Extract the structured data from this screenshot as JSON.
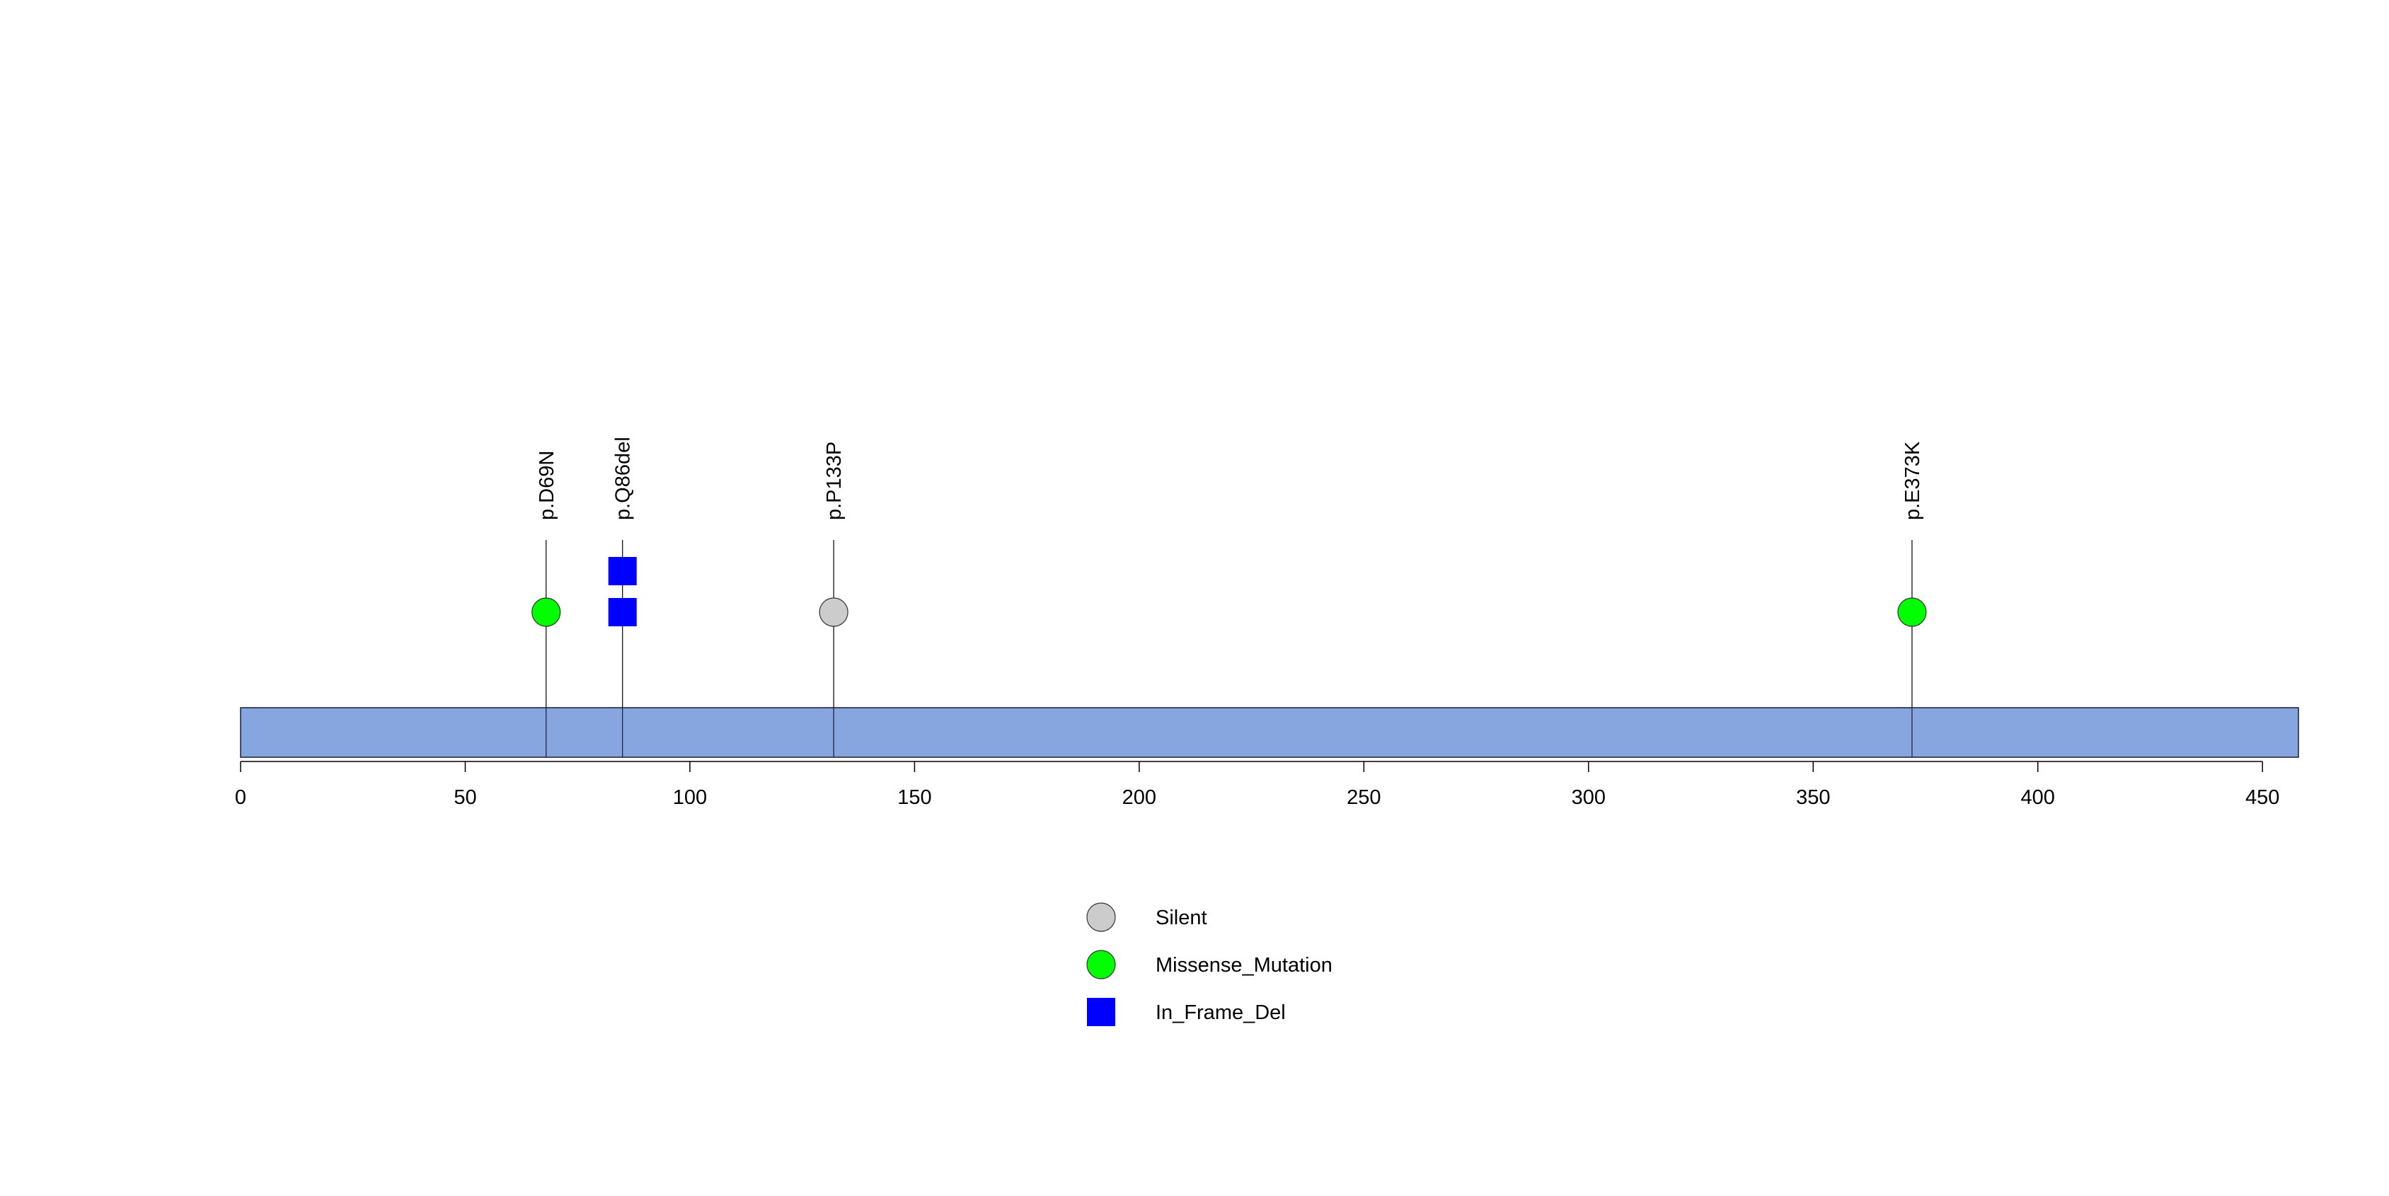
{
  "chart_data": {
    "type": "lollipop",
    "title": "",
    "xlabel": "",
    "ylabel": "",
    "xlim": [
      0,
      458
    ],
    "x_ticks": [
      0,
      50,
      100,
      150,
      200,
      250,
      300,
      350,
      400,
      450
    ],
    "x_tick_labels": [
      "0",
      "50",
      "100",
      "150",
      "200",
      "250",
      "300",
      "350",
      "400",
      "450"
    ],
    "protein_length": 458,
    "colors": {
      "protein_bar": "#87a5de",
      "Silent": "#cccccc",
      "Missense_Mutation": "#00ff00",
      "In_Frame_Del": "#0000ff"
    },
    "mutations": [
      {
        "label": "p.D69N",
        "position": 68,
        "type": "Missense_Mutation",
        "shape": "circle",
        "count": 1
      },
      {
        "label": "p.Q86del",
        "position": 85,
        "type": "In_Frame_Del",
        "shape": "square",
        "count": 2
      },
      {
        "label": "p.P133P",
        "position": 132,
        "type": "Silent",
        "shape": "circle",
        "count": 1
      },
      {
        "label": "p.E373K",
        "position": 372,
        "type": "Missense_Mutation",
        "shape": "circle",
        "count": 1
      }
    ],
    "legend": [
      {
        "label": "Silent",
        "shape": "circle",
        "type": "Silent"
      },
      {
        "label": "Missense_Mutation",
        "shape": "circle",
        "type": "Missense_Mutation"
      },
      {
        "label": "In_Frame_Del",
        "shape": "square",
        "type": "In_Frame_Del"
      }
    ]
  }
}
